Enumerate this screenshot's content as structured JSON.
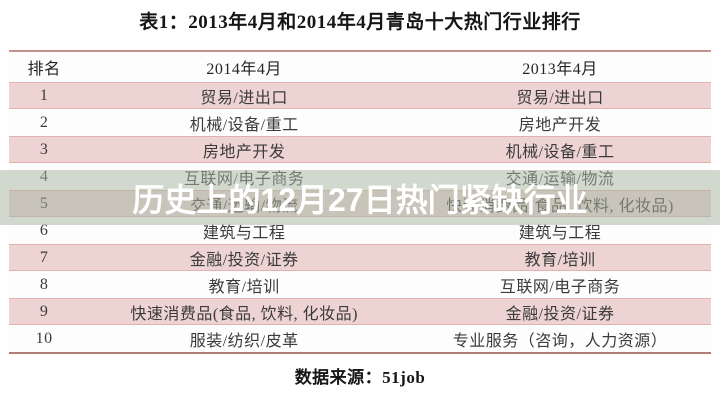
{
  "title": "表1：2013年4月和2014年4月青岛十大热门行业排行",
  "overlay": {
    "text": "历史上的12月27日热门紧缺行业"
  },
  "table": {
    "headers": [
      "排名",
      "2014年4月",
      "2013年4月"
    ],
    "rows": [
      {
        "rank": "1",
        "y2014": "贸易/进出口",
        "y2013": "贸易/进出口"
      },
      {
        "rank": "2",
        "y2014": "机械/设备/重工",
        "y2013": "房地产开发"
      },
      {
        "rank": "3",
        "y2014": "房地产开发",
        "y2013": "机械/设备/重工"
      },
      {
        "rank": "4",
        "y2014": "互联网/电子商务",
        "y2013": "交通/运输/物流"
      },
      {
        "rank": "5",
        "y2014": "交通/运输/物流",
        "y2013": "快速消费品(食品, 饮料, 化妆品)"
      },
      {
        "rank": "6",
        "y2014": "建筑与工程",
        "y2013": "建筑与工程"
      },
      {
        "rank": "7",
        "y2014": "金融/投资/证券",
        "y2013": "教育/培训"
      },
      {
        "rank": "8",
        "y2014": "教育/培训",
        "y2013": "互联网/电子商务"
      },
      {
        "rank": "9",
        "y2014": "快速消费品(食品, 饮料, 化妆品)",
        "y2013": "金融/投资/证券"
      },
      {
        "rank": "10",
        "y2014": "服装/纺织/皮革",
        "y2013": "专业服务（咨询，人力资源）"
      }
    ]
  },
  "source": "数据来源：51job",
  "colors": {
    "row_pink": "#eed3d3",
    "row_white": "#fefdfd",
    "row_pink_edge": "#e3b2b0",
    "table_border_top": "#c3928e",
    "table_border_bottom": "#b07d79",
    "overlay_tint": "rgba(166,183,161,0.52)",
    "overlay_text": "#ffffff",
    "cell_text": "#3b3b3b"
  }
}
